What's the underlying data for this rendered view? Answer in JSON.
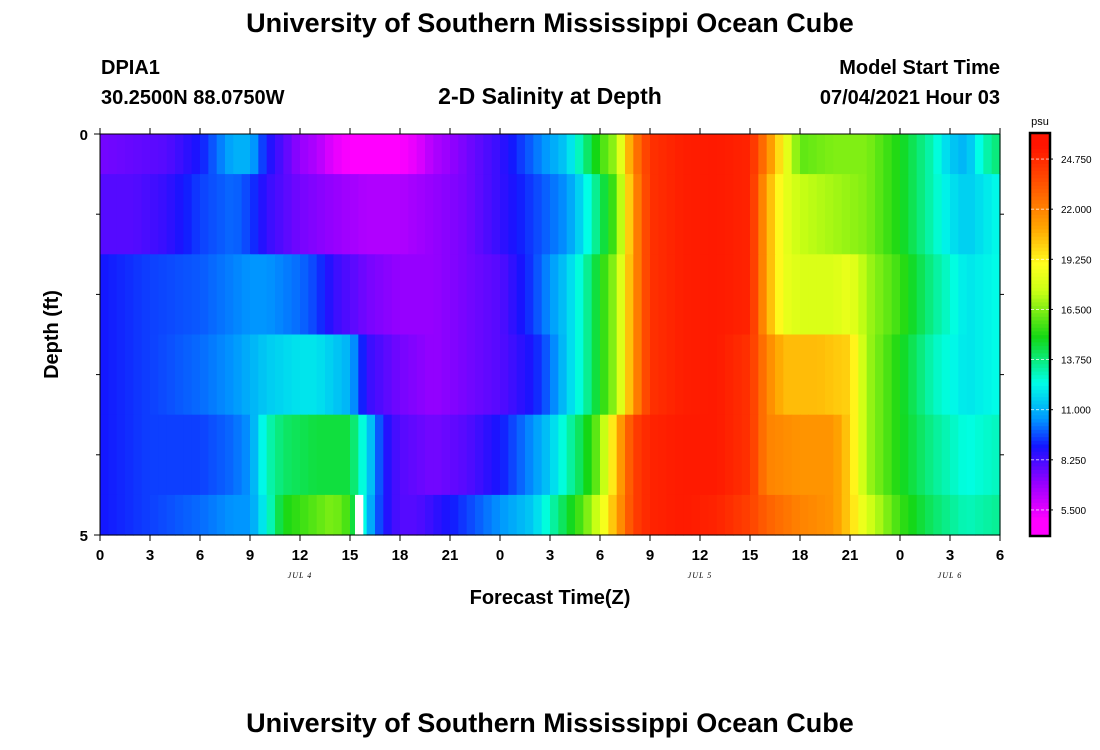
{
  "header": {
    "title": "University of Southern Mississippi Ocean Cube",
    "station": "DPIA1",
    "coordinates": "30.2500N  88.0750W",
    "chart_title": "2-D Salinity at Depth",
    "start_label": "Model Start Time",
    "start_value": "07/04/2021 Hour 03"
  },
  "footer": {
    "title": "University of Southern Mississippi Ocean Cube"
  },
  "chart_data": {
    "type": "heatmap",
    "title": "2-D Salinity at Depth",
    "xlabel": "Forecast Time(Z)",
    "ylabel": "Depth (ft)",
    "xlim": [
      0,
      54
    ],
    "ylim": [
      0,
      5
    ],
    "x_ticks": [
      0,
      3,
      6,
      9,
      12,
      15,
      18,
      21,
      24,
      27,
      30,
      33,
      36,
      39,
      42,
      45,
      48,
      51,
      54
    ],
    "x_tick_labels": [
      "0",
      "3",
      "6",
      "9",
      "12",
      "15",
      "18",
      "21",
      "0",
      "3",
      "6",
      "9",
      "12",
      "15",
      "18",
      "21",
      "0",
      "3",
      "6"
    ],
    "date_labels": [
      {
        "hour": 12,
        "text": "JUL 4"
      },
      {
        "hour": 36,
        "text": "JUL 5"
      },
      {
        "hour": 51,
        "text": "JUL 6"
      }
    ],
    "y_tick_labels": [
      "0",
      "5"
    ],
    "y_minor_ticks": [
      1,
      2,
      3,
      4
    ],
    "depth_layer_edges": [
      0,
      0.5,
      1.5,
      2.5,
      3.5,
      4.5,
      5
    ],
    "colorbar": {
      "unit": "psu",
      "range": [
        4.125,
        26.125
      ],
      "tick_values": [
        5.5,
        8.25,
        11.0,
        13.75,
        16.5,
        19.25,
        22.0,
        24.75
      ],
      "tick_labels": [
        "5.500",
        "8.250",
        "11.000",
        "13.750",
        "16.500",
        "19.250",
        "22.000",
        "24.750"
      ]
    },
    "gap": {
      "hour_start": 15.3,
      "hour_end": 15.8,
      "depth_top": 4.5,
      "depth_bottom": 5
    },
    "series": [
      {
        "name": "layer-1",
        "hours": [
          0,
          4,
          6,
          8,
          9,
          10,
          12,
          13,
          14,
          15,
          18,
          19,
          20,
          22,
          24,
          26,
          28,
          29,
          30,
          31,
          32,
          33,
          35,
          37,
          39,
          40,
          41,
          42,
          44,
          46,
          48,
          50,
          51,
          52,
          53,
          54
        ],
        "values": [
          7.5,
          8.0,
          9.0,
          11.0,
          11.0,
          9.0,
          7.0,
          6.5,
          5.5,
          5.0,
          5.0,
          5.5,
          6.5,
          7.5,
          8.5,
          10.0,
          11.5,
          13.5,
          15.5,
          17.0,
          22.0,
          24.5,
          25.2,
          25.3,
          25.0,
          22.0,
          19.0,
          16.0,
          16.5,
          16.5,
          15.0,
          13.0,
          11.5,
          11.0,
          13.0,
          14.0
        ]
      },
      {
        "name": "layer-2",
        "hours": [
          0,
          2,
          4,
          6,
          8,
          9,
          10,
          12,
          14,
          16,
          18,
          20,
          22,
          24,
          26,
          28,
          29,
          30,
          31,
          32,
          33,
          35,
          37,
          39,
          40,
          41,
          42,
          44,
          46,
          48,
          50,
          51,
          52,
          53,
          54
        ],
        "values": [
          8.0,
          8.0,
          8.5,
          9.5,
          10.0,
          9.5,
          8.5,
          7.5,
          7.0,
          6.5,
          6.5,
          7.0,
          7.5,
          8.5,
          9.5,
          10.5,
          12.0,
          14.0,
          16.0,
          21.5,
          24.5,
          25.2,
          25.3,
          25.0,
          21.0,
          18.5,
          17.5,
          17.0,
          16.5,
          15.0,
          13.0,
          12.0,
          11.5,
          12.0,
          12.5
        ]
      },
      {
        "name": "layer-3",
        "hours": [
          0,
          3,
          6,
          9,
          10,
          12,
          13,
          14,
          15,
          16,
          18,
          20,
          22,
          24,
          26,
          27,
          28,
          29,
          30,
          31,
          32,
          33,
          35,
          37,
          39,
          40,
          41,
          42,
          44,
          45,
          46,
          48,
          50,
          52,
          54
        ],
        "values": [
          9.0,
          9.5,
          9.8,
          10.5,
          10.5,
          10.0,
          9.5,
          8.5,
          8.0,
          7.5,
          7.0,
          7.0,
          7.5,
          8.0,
          9.5,
          10.5,
          11.5,
          13.0,
          15.0,
          17.0,
          21.5,
          24.5,
          25.2,
          25.3,
          25.0,
          21.0,
          18.5,
          18.0,
          18.0,
          18.5,
          17.0,
          15.5,
          13.5,
          12.0,
          12.5
        ]
      },
      {
        "name": "layer-4",
        "hours": [
          0,
          3,
          6,
          8,
          10,
          12,
          13,
          14,
          15,
          16,
          18,
          20,
          22,
          24,
          26,
          27,
          28,
          29,
          30,
          31,
          32,
          33,
          35,
          37,
          39,
          40,
          41,
          42,
          43,
          45,
          46,
          48,
          50,
          52,
          54
        ],
        "values": [
          9.0,
          9.5,
          10.0,
          10.5,
          11.5,
          12.0,
          12.0,
          11.5,
          11.0,
          8.5,
          7.5,
          7.0,
          7.5,
          8.0,
          9.0,
          10.0,
          11.5,
          13.0,
          15.0,
          17.0,
          21.5,
          24.5,
          25.2,
          25.3,
          24.5,
          22.0,
          20.5,
          20.5,
          20.5,
          20.0,
          17.0,
          15.0,
          13.0,
          12.0,
          12.5
        ]
      },
      {
        "name": "layer-5",
        "hours": [
          0,
          3,
          6,
          8,
          9,
          10,
          11,
          13,
          15,
          16,
          17,
          18,
          20,
          22,
          24,
          26,
          27,
          28,
          29,
          30,
          31,
          32,
          33,
          35,
          37,
          39,
          40,
          42,
          44,
          45,
          46,
          48,
          50,
          52,
          54
        ],
        "values": [
          9.0,
          9.5,
          9.5,
          10.0,
          10.5,
          13.0,
          14.0,
          14.5,
          14.5,
          12.0,
          9.0,
          8.0,
          7.5,
          8.0,
          9.0,
          10.5,
          11.5,
          13.0,
          14.5,
          16.5,
          20.5,
          24.0,
          25.0,
          25.3,
          25.3,
          24.5,
          22.0,
          21.5,
          21.5,
          20.0,
          17.0,
          15.0,
          13.5,
          12.5,
          13.0
        ]
      },
      {
        "name": "layer-6",
        "hours": [
          0,
          3,
          6,
          8,
          9,
          10,
          11,
          12,
          14,
          15,
          16,
          17,
          18,
          19,
          20,
          22,
          24,
          26,
          27,
          28,
          29,
          30,
          31,
          32,
          33,
          35,
          37,
          39,
          40,
          42,
          44,
          45,
          46,
          48,
          50,
          52,
          54
        ],
        "values": [
          9.0,
          9.5,
          10.0,
          10.5,
          10.5,
          12.5,
          15.0,
          15.5,
          16.5,
          15.5,
          11.5,
          9.0,
          8.0,
          8.0,
          8.5,
          9.5,
          10.5,
          11.5,
          13.0,
          14.5,
          16.0,
          18.0,
          21.0,
          24.0,
          25.0,
          25.3,
          25.0,
          24.0,
          23.0,
          22.0,
          21.5,
          20.0,
          18.0,
          15.5,
          14.0,
          13.0,
          13.5
        ]
      }
    ]
  }
}
